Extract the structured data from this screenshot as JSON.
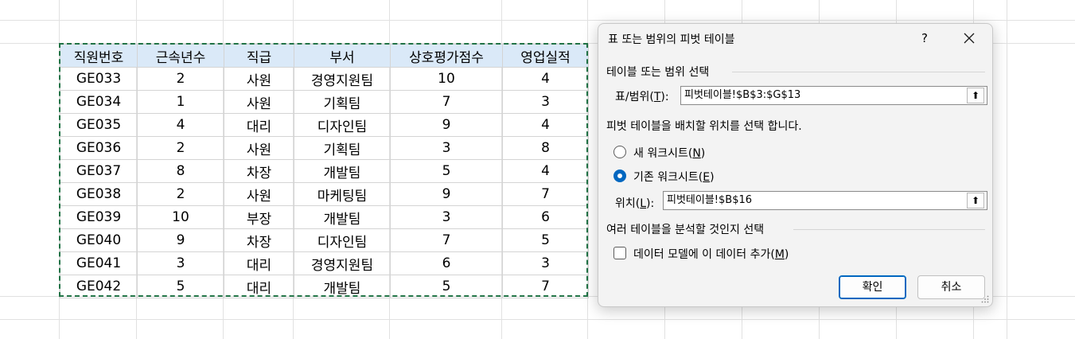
{
  "sheet": {
    "columns": [
      "직원번호",
      "근속년수",
      "직급",
      "부서",
      "상호평가점수",
      "영업실적"
    ],
    "rows": [
      [
        "GE033",
        "2",
        "사원",
        "경영지원팀",
        "10",
        "4"
      ],
      [
        "GE034",
        "1",
        "사원",
        "기획팀",
        "7",
        "3"
      ],
      [
        "GE035",
        "4",
        "대리",
        "디자인팀",
        "9",
        "4"
      ],
      [
        "GE036",
        "2",
        "사원",
        "기획팀",
        "3",
        "8"
      ],
      [
        "GE037",
        "8",
        "차장",
        "개발팀",
        "5",
        "4"
      ],
      [
        "GE038",
        "2",
        "사원",
        "마케팅팀",
        "9",
        "7"
      ],
      [
        "GE039",
        "10",
        "부장",
        "개발팀",
        "3",
        "6"
      ],
      [
        "GE040",
        "9",
        "차장",
        "디자인팀",
        "7",
        "5"
      ],
      [
        "GE041",
        "3",
        "대리",
        "경영지원팀",
        "6",
        "3"
      ],
      [
        "GE042",
        "5",
        "대리",
        "개발팀",
        "5",
        "7"
      ]
    ],
    "header_fill": "#dae9f8",
    "marquee_color": "#217346"
  },
  "dialog": {
    "title": "표 또는 범위의 피벗 테이블",
    "help_label": "?",
    "close_icon": "close-icon",
    "section_select": "테이블 또는 범위 선택",
    "range_label_prefix": "표/범위(",
    "range_label_key": "T",
    "range_label_suffix": "):",
    "range_value": "피벗테이블!$B$3:$G$13",
    "section_place": "피벗 테이블을 배치할 위치를 선택 합니다.",
    "new_sheet_prefix": "새 워크시트(",
    "new_sheet_key": "N",
    "new_sheet_suffix": ")",
    "new_sheet_checked": false,
    "existing_sheet_prefix": "기존 워크시트(",
    "existing_sheet_key": "E",
    "existing_sheet_suffix": ")",
    "existing_sheet_checked": true,
    "location_label_prefix": "위치(",
    "location_label_key": "L",
    "location_label_suffix": "):",
    "location_value": "피벗테이블!$B$16",
    "section_multi": "여러 테이블을 분석할 것인지 선택",
    "data_model_prefix": "데이터 모델에 이 데이터 추가(",
    "data_model_key": "M",
    "data_model_suffix": ")",
    "data_model_checked": false,
    "ok_label": "확인",
    "cancel_label": "취소",
    "accent_color": "#0067c0"
  }
}
